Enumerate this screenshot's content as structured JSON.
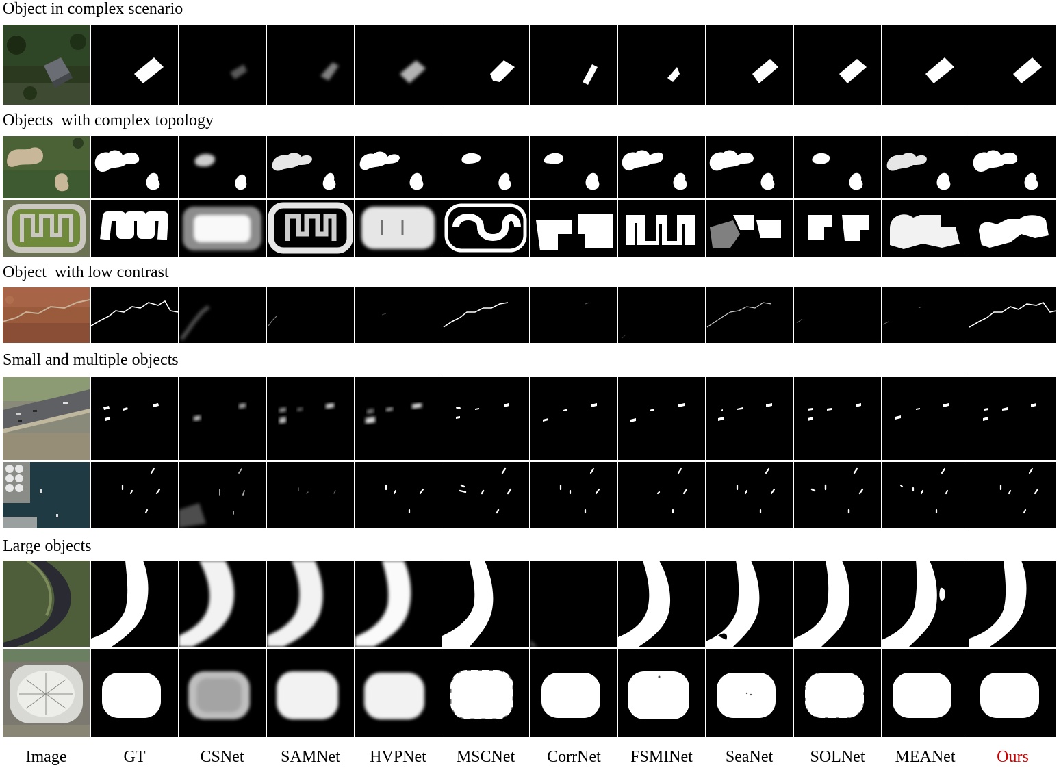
{
  "sections": [
    {
      "title": "Object in complex scenario"
    },
    {
      "title": "Objects  with complex topology"
    },
    {
      "title": "Object  with low contrast"
    },
    {
      "title": "Small and multiple objects"
    },
    {
      "title": "Large objects"
    }
  ],
  "columns": [
    {
      "label": "Image",
      "color": "#000000"
    },
    {
      "label": "GT",
      "color": "#000000"
    },
    {
      "label": "CSNet",
      "color": "#000000"
    },
    {
      "label": "SAMNet",
      "color": "#000000"
    },
    {
      "label": "HVPNet",
      "color": "#000000"
    },
    {
      "label": "MSCNet",
      "color": "#000000"
    },
    {
      "label": "CorrNet",
      "color": "#000000"
    },
    {
      "label": "FSMINet",
      "color": "#000000"
    },
    {
      "label": "SeaNet",
      "color": "#000000"
    },
    {
      "label": "SOLNet",
      "color": "#000000"
    },
    {
      "label": "MEANet",
      "color": "#000000"
    },
    {
      "label": "Ours",
      "color": "#cc0000"
    }
  ],
  "rows": [
    {
      "section": 0,
      "scene": "house"
    },
    {
      "section": 1,
      "scene": "bunkers"
    },
    {
      "section": 1,
      "scene": "maze"
    },
    {
      "section": 2,
      "scene": "crack"
    },
    {
      "section": 3,
      "scene": "cars"
    },
    {
      "section": 3,
      "scene": "boats"
    },
    {
      "section": 4,
      "scene": "river"
    },
    {
      "section": 4,
      "scene": "stadium"
    }
  ]
}
